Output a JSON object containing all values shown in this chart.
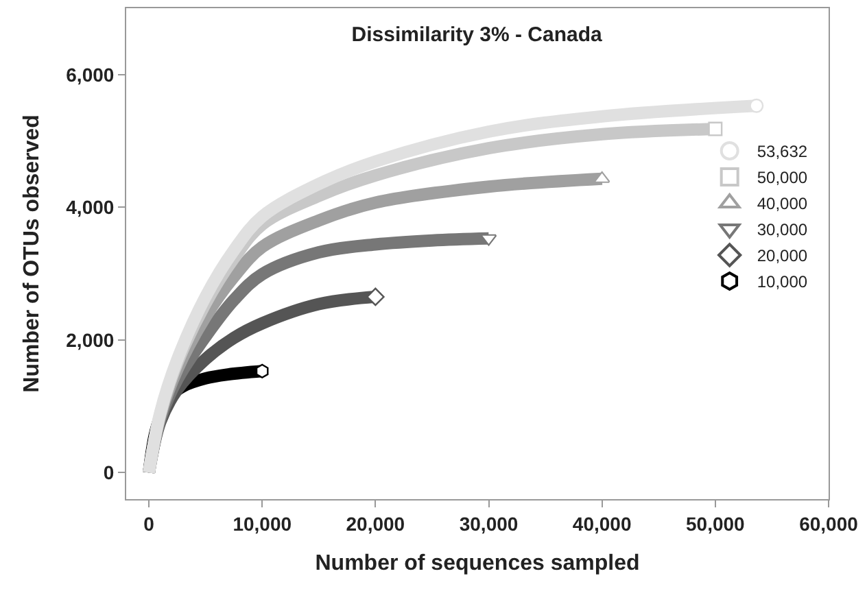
{
  "chart_data": {
    "type": "line",
    "title": "Dissimilarity 3% - Canada",
    "xlabel": "Number of sequences sampled",
    "ylabel": "Number of OTUs observed",
    "xlim": [
      -2000,
      60000
    ],
    "xticks": [
      {
        "value": 0,
        "label": "0"
      },
      {
        "value": 10000,
        "label": "10,000"
      },
      {
        "value": 20000,
        "label": "20,000"
      },
      {
        "value": 30000,
        "label": "30,000"
      },
      {
        "value": 40000,
        "label": "40,000"
      },
      {
        "value": 50000,
        "label": "50,000"
      },
      {
        "value": 60000,
        "label": "60,000"
      }
    ],
    "ylim": [
      -400,
      7000
    ],
    "yticks": [
      {
        "value": 0,
        "label": "0"
      },
      {
        "value": 2000,
        "label": "2,000"
      },
      {
        "value": 4000,
        "label": "4,000"
      },
      {
        "value": 6000,
        "label": "6,000"
      }
    ],
    "legend": "right",
    "line_style": "solid",
    "series": [
      {
        "name": "53,632",
        "color": "#e0e0e0",
        "x": [
          0,
          1000,
          2500,
          5000,
          7500,
          10000,
          15000,
          20000,
          30000,
          40000,
          53632
        ],
        "values": [
          0,
          900,
          1700,
          2650,
          3350,
          3860,
          4350,
          4690,
          5140,
          5370,
          5530
        ]
      },
      {
        "name": "50,000",
        "color": "#c8c8c8",
        "x": [
          0,
          1000,
          2500,
          5000,
          7500,
          10000,
          15000,
          20000,
          30000,
          40000,
          50000
        ],
        "values": [
          0,
          880,
          1650,
          2550,
          3230,
          3740,
          4170,
          4480,
          4890,
          5100,
          5180
        ]
      },
      {
        "name": "40,000",
        "color": "#a0a0a0",
        "x": [
          0,
          1000,
          2500,
          5000,
          7500,
          10000,
          15000,
          20000,
          30000,
          40000
        ],
        "values": [
          0,
          850,
          1550,
          2350,
          2950,
          3400,
          3800,
          4070,
          4310,
          4430
        ]
      },
      {
        "name": "30,000",
        "color": "#777777",
        "x": [
          0,
          1000,
          2500,
          5000,
          7500,
          10000,
          15000,
          20000,
          25000,
          30000
        ],
        "values": [
          0,
          800,
          1400,
          2050,
          2600,
          2990,
          3320,
          3440,
          3500,
          3530
        ]
      },
      {
        "name": "20,000",
        "color": "#555555",
        "x": [
          0,
          1000,
          2500,
          5000,
          7500,
          10000,
          15000,
          20000
        ],
        "values": [
          0,
          760,
          1250,
          1710,
          2030,
          2250,
          2540,
          2650
        ]
      },
      {
        "name": "10,000",
        "color": "#000000",
        "x": [
          0,
          500,
          1000,
          2000,
          3000,
          5000,
          7000,
          10000
        ],
        "values": [
          0,
          550,
          840,
          1170,
          1300,
          1420,
          1480,
          1530
        ]
      }
    ]
  }
}
